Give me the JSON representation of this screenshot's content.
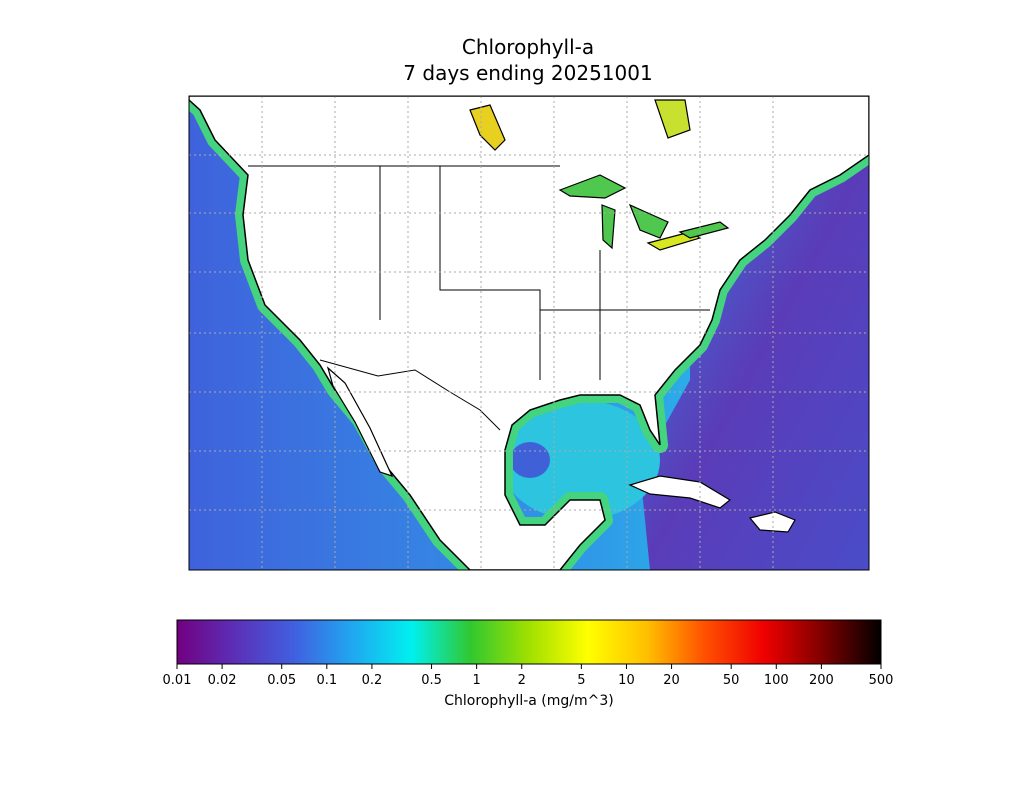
{
  "map": {
    "title": "Chlorophyll-a",
    "subtitle": "7 days ending 20251001"
  },
  "colorbar": {
    "label": "Chlorophyll-a (mg/m^3)",
    "log": true,
    "lim": [
      0.01,
      500
    ],
    "ticks": [
      0.01,
      0.02,
      0.05,
      0.1,
      0.2,
      0.5,
      1,
      2,
      5,
      10,
      20,
      50,
      100,
      200,
      500
    ],
    "colors": [
      "#720080",
      "#5b30b8",
      "#4060e0",
      "#20a8f0",
      "#00f0f0",
      "#30c830",
      "#a0e000",
      "#ffff00",
      "#ffc000",
      "#ff5000",
      "#f00000",
      "#800000",
      "#000000"
    ]
  }
}
